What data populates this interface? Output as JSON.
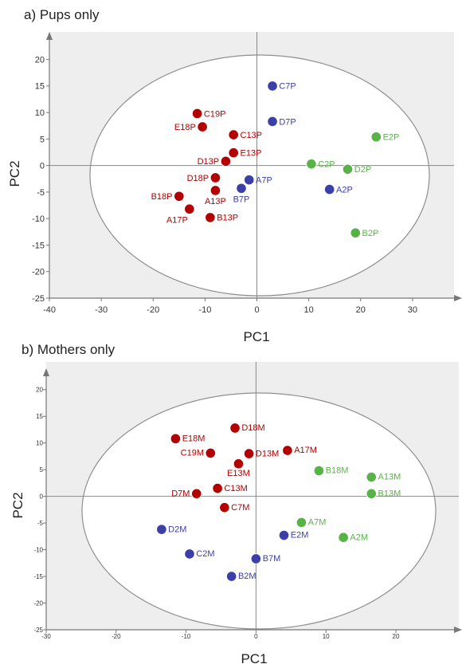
{
  "chart_data": [
    {
      "type": "scatter",
      "title": "a) Pups only",
      "xlabel": "PC1",
      "ylabel": "PC2",
      "xlim": [
        -40,
        38
      ],
      "ylim": [
        -25,
        24
      ],
      "xticks": [
        -40,
        -30,
        -20,
        -10,
        0,
        10,
        20,
        30
      ],
      "yticks": [
        -25,
        -20,
        -15,
        -10,
        -5,
        0,
        5,
        10,
        15,
        20
      ],
      "ellipse": true,
      "colors": {
        "red": "#b30000",
        "blue": "#3b3fa8",
        "green": "#58b347"
      },
      "points": [
        {
          "label": "C19P",
          "x": -11.5,
          "y": 9.8,
          "group": "red",
          "label_pos": "right"
        },
        {
          "label": "E18P",
          "x": -10.5,
          "y": 7.3,
          "group": "red",
          "label_pos": "left"
        },
        {
          "label": "C13P",
          "x": -4.5,
          "y": 5.8,
          "group": "red",
          "label_pos": "right"
        },
        {
          "label": "E13P",
          "x": -4.5,
          "y": 2.4,
          "group": "red",
          "label_pos": "right"
        },
        {
          "label": "D13P",
          "x": -6.0,
          "y": 0.8,
          "group": "red",
          "label_pos": "left"
        },
        {
          "label": "D18P",
          "x": -8.0,
          "y": -2.3,
          "group": "red",
          "label_pos": "left"
        },
        {
          "label": "A13P",
          "x": -8.0,
          "y": -4.7,
          "group": "red",
          "label_pos": "below"
        },
        {
          "label": "B18P",
          "x": -15.0,
          "y": -5.8,
          "group": "red",
          "label_pos": "left"
        },
        {
          "label": "A17P",
          "x": -13.0,
          "y": -8.2,
          "group": "red",
          "label_pos": "belowleft"
        },
        {
          "label": "B13P",
          "x": -9.0,
          "y": -9.8,
          "group": "red",
          "label_pos": "right"
        },
        {
          "label": "C7P",
          "x": 3.0,
          "y": 15.0,
          "group": "blue",
          "label_pos": "right"
        },
        {
          "label": "D7P",
          "x": 3.0,
          "y": 8.3,
          "group": "blue",
          "label_pos": "right"
        },
        {
          "label": "A7P",
          "x": -1.5,
          "y": -2.7,
          "group": "blue",
          "label_pos": "right"
        },
        {
          "label": "B7P",
          "x": -3.0,
          "y": -4.3,
          "group": "blue",
          "label_pos": "below"
        },
        {
          "label": "A2P",
          "x": 14.0,
          "y": -4.5,
          "group": "blue",
          "label_pos": "right"
        },
        {
          "label": "E2P",
          "x": 23.0,
          "y": 5.4,
          "group": "green",
          "label_pos": "right"
        },
        {
          "label": "C2P",
          "x": 10.5,
          "y": 0.3,
          "group": "green",
          "label_pos": "right"
        },
        {
          "label": "D2P",
          "x": 17.5,
          "y": -0.7,
          "group": "green",
          "label_pos": "right"
        },
        {
          "label": "B2P",
          "x": 19.0,
          "y": -12.7,
          "group": "green",
          "label_pos": "right"
        }
      ]
    },
    {
      "type": "scatter",
      "title": "b) Mothers only",
      "xlabel": "PC1",
      "ylabel": "PC2",
      "xlim": [
        -30,
        29
      ],
      "ylim": [
        -25,
        24
      ],
      "xticks": [
        -30,
        -20,
        -10,
        0,
        10,
        20
      ],
      "yticks": [
        -25,
        -20,
        -15,
        -10,
        -5,
        0,
        5,
        10,
        15,
        20
      ],
      "ellipse": true,
      "colors": {
        "red": "#b30000",
        "blue": "#3b3fa8",
        "green": "#58b347"
      },
      "points": [
        {
          "label": "D18M",
          "x": -3.0,
          "y": 12.8,
          "group": "red",
          "label_pos": "right"
        },
        {
          "label": "E18M",
          "x": -11.5,
          "y": 10.8,
          "group": "red",
          "label_pos": "right"
        },
        {
          "label": "A17M",
          "x": 4.5,
          "y": 8.6,
          "group": "red",
          "label_pos": "right"
        },
        {
          "label": "C19M",
          "x": -6.5,
          "y": 8.1,
          "group": "red",
          "label_pos": "left"
        },
        {
          "label": "D13M",
          "x": -1.0,
          "y": 8.0,
          "group": "red",
          "label_pos": "right"
        },
        {
          "label": "E13M",
          "x": -2.5,
          "y": 6.1,
          "group": "red",
          "label_pos": "below"
        },
        {
          "label": "C13M",
          "x": -5.5,
          "y": 1.5,
          "group": "red",
          "label_pos": "right"
        },
        {
          "label": "D7M",
          "x": -8.5,
          "y": 0.5,
          "group": "red",
          "label_pos": "left"
        },
        {
          "label": "C7M",
          "x": -4.5,
          "y": -2.1,
          "group": "red",
          "label_pos": "right"
        },
        {
          "label": "D2M",
          "x": -13.5,
          "y": -6.2,
          "group": "blue",
          "label_pos": "right"
        },
        {
          "label": "E2M",
          "x": 4.0,
          "y": -7.3,
          "group": "blue",
          "label_pos": "right"
        },
        {
          "label": "C2M",
          "x": -9.5,
          "y": -10.8,
          "group": "blue",
          "label_pos": "right"
        },
        {
          "label": "B7M",
          "x": 0.0,
          "y": -11.7,
          "group": "blue",
          "label_pos": "right"
        },
        {
          "label": "B2M",
          "x": -3.5,
          "y": -15.0,
          "group": "blue",
          "label_pos": "right"
        },
        {
          "label": "B18M",
          "x": 9.0,
          "y": 4.8,
          "group": "green",
          "label_pos": "right"
        },
        {
          "label": "A13M",
          "x": 16.5,
          "y": 3.6,
          "group": "green",
          "label_pos": "right"
        },
        {
          "label": "B13M",
          "x": 16.5,
          "y": 0.5,
          "group": "green",
          "label_pos": "right"
        },
        {
          "label": "A7M",
          "x": 6.5,
          "y": -4.9,
          "group": "green",
          "label_pos": "right"
        },
        {
          "label": "A2M",
          "x": 12.5,
          "y": -7.7,
          "group": "green",
          "label_pos": "right"
        }
      ]
    }
  ]
}
